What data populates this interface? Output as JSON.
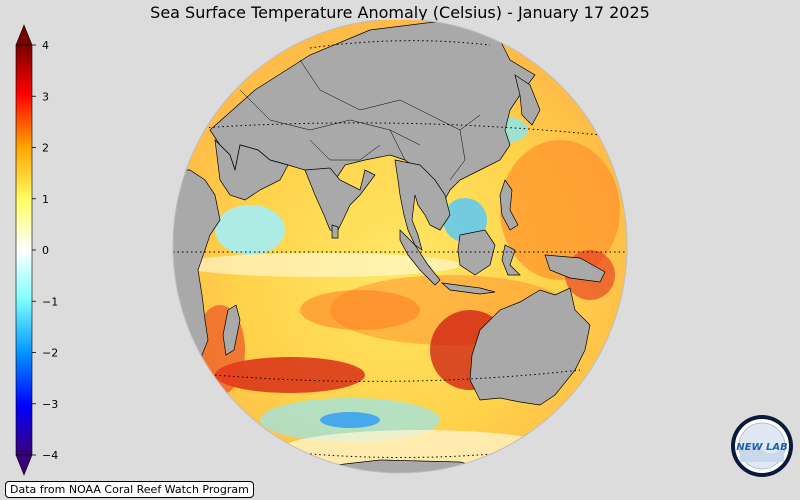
{
  "title": "Sea Surface Temperature Anomaly (Celsius) - January 17 2025",
  "colorbar": {
    "ticks": [
      "4",
      "3",
      "2",
      "1",
      "0",
      "−1",
      "−2",
      "−3",
      "−4"
    ],
    "min": -4,
    "max": 4,
    "colors": [
      "#3a007a",
      "#0000ff",
      "#0096ff",
      "#7fffff",
      "#ffffff",
      "#ffff66",
      "#ffa500",
      "#ff0000",
      "#7a0000"
    ]
  },
  "map": {
    "land_color": "#a9a9a9",
    "background_color": "#dcdcdc"
  },
  "credit": "Data from NOAA Coral Reef Watch Program",
  "logo": {
    "name": "noaa-lab-logo",
    "text": "NEW LAB"
  }
}
